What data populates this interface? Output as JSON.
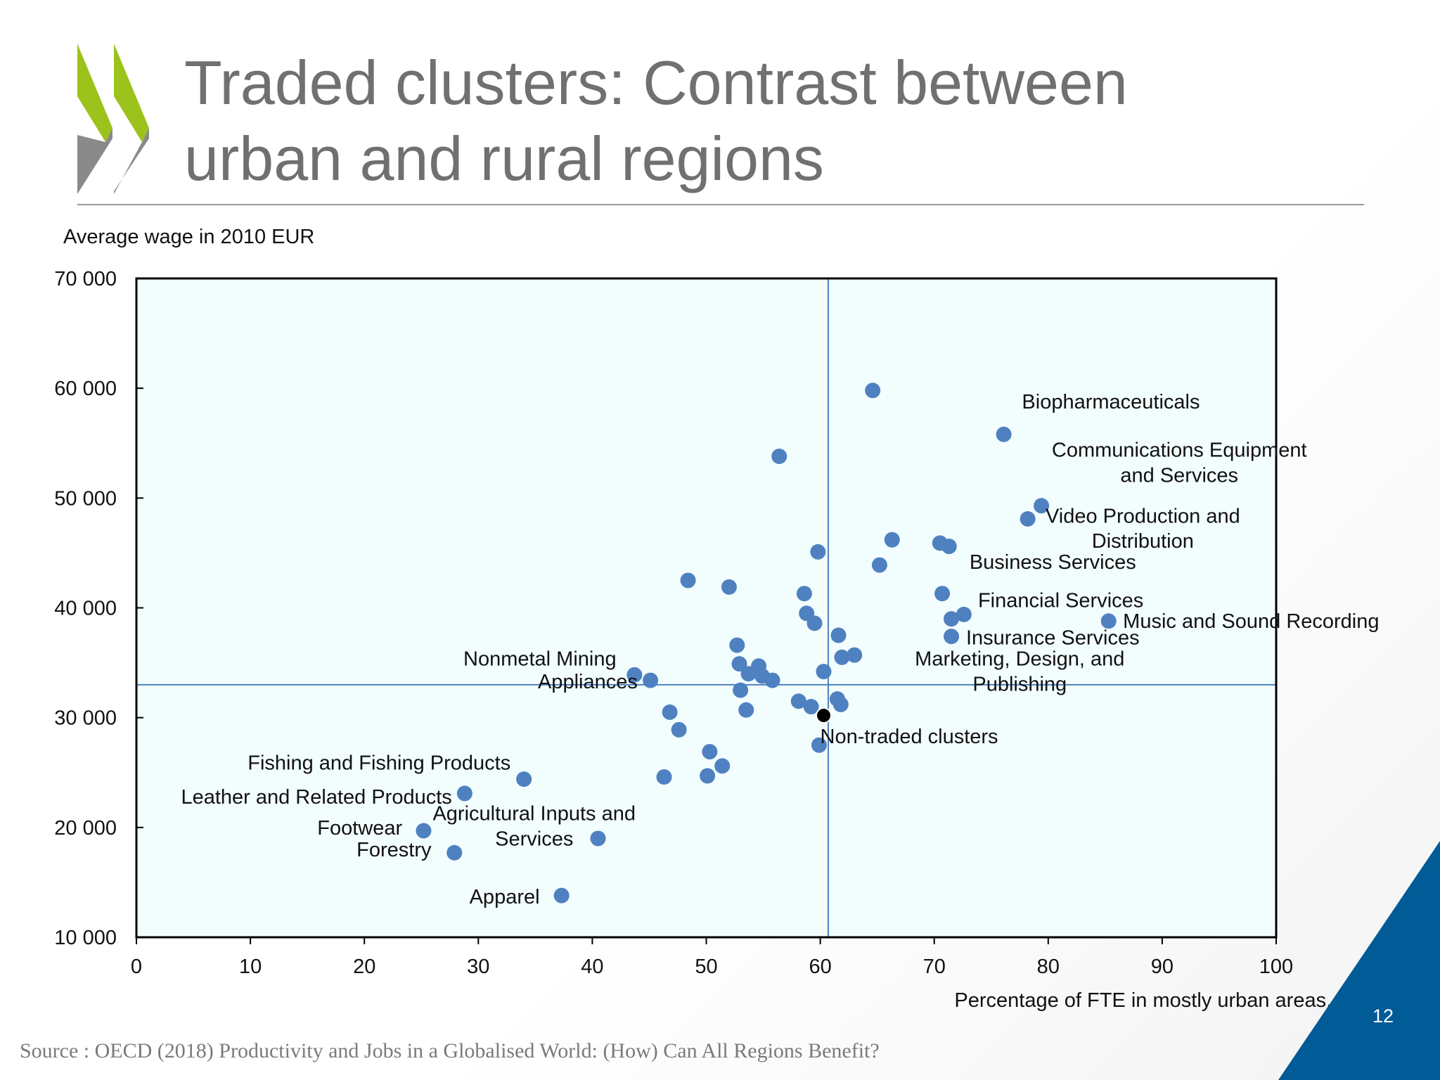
{
  "title": {
    "line1": "Traded clusters: Contrast between",
    "line2": "urban and rural regions"
  },
  "source": "Source : OECD (2018) Productivity and Jobs in a Globalised World: (How) Can All Regions Benefit?",
  "page_number": "12",
  "colors": {
    "point": "#4f81c0",
    "highlight": "#000000",
    "plot_bg": "#f2fdfe",
    "refline": "#4f81c0",
    "title": "#707070",
    "corner": "#005b96",
    "logo_green": "#9bc31b",
    "logo_gray": "#8a8a8a"
  },
  "chart_data": {
    "type": "scatter",
    "ylabel": "Average wage in 2010 EUR",
    "xlabel": "Percentage of FTE in mostly urban areas, %",
    "xlim": [
      0,
      100
    ],
    "ylim": [
      10000,
      70000
    ],
    "x_ticks": [
      "0",
      "10",
      "20",
      "30",
      "40",
      "50",
      "60",
      "70",
      "80",
      "90",
      "100"
    ],
    "y_ticks": [
      "10 000",
      "20 000",
      "30 000",
      "40 000",
      "50 000",
      "60 000",
      "70 000"
    ],
    "reference_lines": {
      "x": 60.7,
      "y": 33000
    },
    "grid": false,
    "points": [
      {
        "x": 64.6,
        "y": 59800
      },
      {
        "x": 76.1,
        "y": 55800,
        "label": "Biopharmaceuticals"
      },
      {
        "x": 56.4,
        "y": 53800
      },
      {
        "x": 79.4,
        "y": 49300,
        "label": "Communications Equipment and Services"
      },
      {
        "x": 78.2,
        "y": 48100,
        "label": "Video Production and Distribution"
      },
      {
        "x": 66.3,
        "y": 46200
      },
      {
        "x": 70.5,
        "y": 45900
      },
      {
        "x": 71.3,
        "y": 45600,
        "label": "Business Services"
      },
      {
        "x": 59.8,
        "y": 45100
      },
      {
        "x": 65.2,
        "y": 43900
      },
      {
        "x": 48.4,
        "y": 42500
      },
      {
        "x": 52.0,
        "y": 41900
      },
      {
        "x": 58.6,
        "y": 41300
      },
      {
        "x": 70.7,
        "y": 41300,
        "label": "Financial Services"
      },
      {
        "x": 58.8,
        "y": 39500
      },
      {
        "x": 72.6,
        "y": 39400
      },
      {
        "x": 71.5,
        "y": 39000
      },
      {
        "x": 85.3,
        "y": 38800,
        "label": "Music and Sound Recording"
      },
      {
        "x": 59.5,
        "y": 38600
      },
      {
        "x": 61.6,
        "y": 37500
      },
      {
        "x": 71.5,
        "y": 37400,
        "label": "Insurance Services"
      },
      {
        "x": 52.7,
        "y": 36600
      },
      {
        "x": 61.9,
        "y": 35500
      },
      {
        "x": 63.0,
        "y": 35700,
        "label": "Marketing, Design, and Publishing"
      },
      {
        "x": 52.9,
        "y": 34900
      },
      {
        "x": 54.6,
        "y": 34700
      },
      {
        "x": 60.3,
        "y": 34200
      },
      {
        "x": 53.7,
        "y": 34000
      },
      {
        "x": 54.9,
        "y": 33800
      },
      {
        "x": 55.8,
        "y": 33400
      },
      {
        "x": 43.7,
        "y": 33900,
        "label": "Nonmetal Mining"
      },
      {
        "x": 45.1,
        "y": 33400,
        "label": "Appliances"
      },
      {
        "x": 53.0,
        "y": 32500
      },
      {
        "x": 58.1,
        "y": 31500
      },
      {
        "x": 59.2,
        "y": 31000
      },
      {
        "x": 61.5,
        "y": 31700
      },
      {
        "x": 61.8,
        "y": 31200
      },
      {
        "x": 46.8,
        "y": 30500
      },
      {
        "x": 53.5,
        "y": 30700
      },
      {
        "x": 60.3,
        "y": 30200,
        "label": "Non-traded clusters",
        "highlight": true
      },
      {
        "x": 47.6,
        "y": 28900
      },
      {
        "x": 59.9,
        "y": 27500
      },
      {
        "x": 50.3,
        "y": 26900
      },
      {
        "x": 51.4,
        "y": 25600
      },
      {
        "x": 34.0,
        "y": 24400,
        "label": "Fishing and Fishing Products"
      },
      {
        "x": 46.3,
        "y": 24600
      },
      {
        "x": 50.1,
        "y": 24700
      },
      {
        "x": 28.8,
        "y": 23100,
        "label": "Leather and Related Products"
      },
      {
        "x": 25.2,
        "y": 19700,
        "label": "Footwear"
      },
      {
        "x": 40.5,
        "y": 19000,
        "label": "Agricultural Inputs and Services"
      },
      {
        "x": 27.9,
        "y": 17700,
        "label": "Forestry"
      },
      {
        "x": 37.3,
        "y": 13800,
        "label": "Apparel"
      }
    ],
    "annotations": [
      {
        "text": "Biopharmaceuticals",
        "x": 85.5,
        "y": 58800,
        "anchor": "middle"
      },
      {
        "text": "Communications Equipment",
        "x": 91.5,
        "y": 54400,
        "anchor": "middle"
      },
      {
        "text": "and Services",
        "x": 91.5,
        "y": 52100,
        "anchor": "middle"
      },
      {
        "text": "Video Production and",
        "x": 88.3,
        "y": 48400,
        "anchor": "middle"
      },
      {
        "text": "Distribution",
        "x": 88.3,
        "y": 46100,
        "anchor": "middle"
      },
      {
        "text": "Business Services",
        "x": 80.4,
        "y": 44200,
        "anchor": "middle"
      },
      {
        "text": "Financial Services",
        "x": 81.1,
        "y": 40700,
        "anchor": "middle"
      },
      {
        "text": "Music and Sound Recording",
        "x": 97.8,
        "y": 38800,
        "anchor": "middle"
      },
      {
        "text": "Insurance Services",
        "x": 80.4,
        "y": 37300,
        "anchor": "middle"
      },
      {
        "text": "Marketing, Design, and",
        "x": 77.5,
        "y": 35400,
        "anchor": "middle"
      },
      {
        "text": "Publishing",
        "x": 77.5,
        "y": 33100,
        "anchor": "middle"
      },
      {
        "text": "Nonmetal Mining",
        "x": 35.4,
        "y": 35400,
        "anchor": "middle"
      },
      {
        "text": "Appliances",
        "x": 39.6,
        "y": 33300,
        "anchor": "middle"
      },
      {
        "text": "Non-traded clusters",
        "x": 67.8,
        "y": 28300,
        "anchor": "middle"
      },
      {
        "text": "Fishing and Fishing Products",
        "x": 21.3,
        "y": 25900,
        "anchor": "middle"
      },
      {
        "text": "Leather and Related Products",
        "x": 15.8,
        "y": 22800,
        "anchor": "middle"
      },
      {
        "text": "Agricultural Inputs and",
        "x": 34.9,
        "y": 21300,
        "anchor": "middle"
      },
      {
        "text": "Services",
        "x": 34.9,
        "y": 19000,
        "anchor": "middle"
      },
      {
        "text": "Footwear",
        "x": 19.6,
        "y": 20000,
        "anchor": "middle"
      },
      {
        "text": "Forestry",
        "x": 22.6,
        "y": 18000,
        "anchor": "middle"
      },
      {
        "text": "Apparel",
        "x": 32.3,
        "y": 13700,
        "anchor": "middle"
      }
    ]
  }
}
